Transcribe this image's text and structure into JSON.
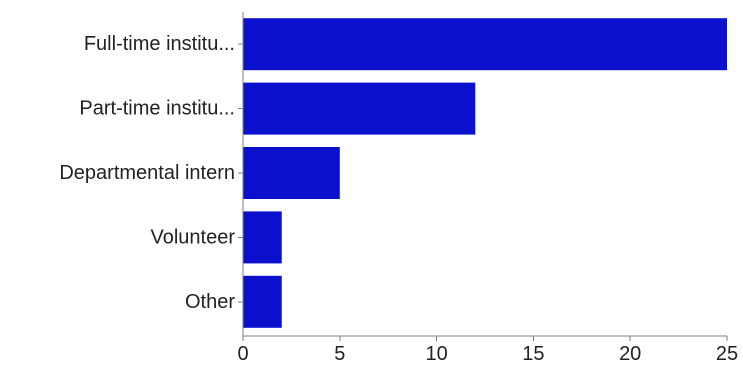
{
  "chart_data": {
    "type": "bar",
    "orientation": "horizontal",
    "title": "",
    "xlabel": "",
    "ylabel": "",
    "categories": [
      "Full-time institu...",
      "Part-time institu...",
      "Departmental intern",
      "Volunteer",
      "Other"
    ],
    "values": [
      25,
      12,
      5,
      2,
      2
    ],
    "xlim": [
      0,
      25
    ],
    "xticks": [
      0,
      5,
      10,
      15,
      20,
      25
    ],
    "grid": false,
    "legend": "none",
    "bar_color": "#0a10cc",
    "axis_color": "#808080"
  }
}
